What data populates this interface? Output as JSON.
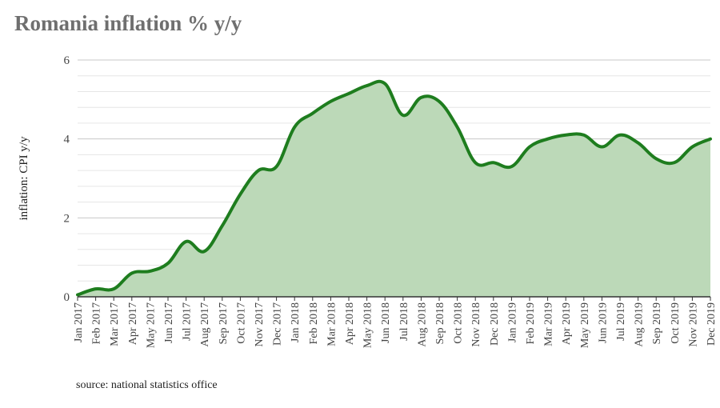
{
  "colors": {
    "line": "#1e7d1e",
    "area": "#bcd9b8",
    "grid_major": "#c8c8c8",
    "grid_minor": "#e6e6e6",
    "title": "#6f6f6f",
    "text": "#444444"
  },
  "chart_data": {
    "type": "area",
    "title": "Romania inflation % y/y",
    "ylabel": "inflation: CPI y/y",
    "xlabel": "",
    "source": "source: national statistics office",
    "ylim": [
      0,
      6
    ],
    "yticks": [
      0,
      2,
      4,
      6
    ],
    "grid": true,
    "legend": "none",
    "categories": [
      "Jan 2017",
      "Feb 2017",
      "Mar 2017",
      "Apr 2017",
      "May 2017",
      "Jun 2017",
      "Jul 2017",
      "Aug 2017",
      "Sep 2017",
      "Oct 2017",
      "Nov 2017",
      "Dec 2017",
      "Jan 2018",
      "Feb 2018",
      "Mar 2018",
      "Apr 2018",
      "May 2018",
      "Jun 2018",
      "Jul 2018",
      "Aug 2018",
      "Sep 2018",
      "Oct 2018",
      "Nov 2018",
      "Dec 2018",
      "Jan 2019",
      "Feb 2019",
      "Mar 2019",
      "Apr 2019",
      "May 2019",
      "Jun 2019",
      "Jul 2019",
      "Aug 2019",
      "Sep 2019",
      "Oct 2019",
      "Nov 2019",
      "Dec 2019"
    ],
    "values": [
      0.05,
      0.2,
      0.2,
      0.6,
      0.65,
      0.85,
      1.4,
      1.15,
      1.8,
      2.6,
      3.2,
      3.3,
      4.3,
      4.65,
      4.95,
      5.15,
      5.35,
      5.4,
      4.6,
      5.05,
      4.95,
      4.3,
      3.4,
      3.4,
      3.3,
      3.8,
      4.0,
      4.1,
      4.1,
      3.8,
      4.1,
      3.9,
      3.5,
      3.4,
      3.8,
      4.0
    ]
  }
}
